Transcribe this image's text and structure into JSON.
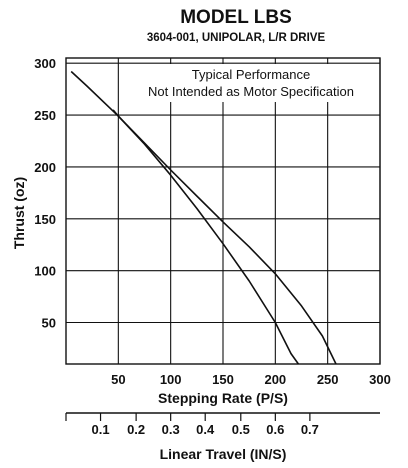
{
  "chart_data": {
    "type": "line",
    "title": "MODEL LBS",
    "subtitle": "3604-001, UNIPOLAR, L/R DRIVE",
    "annotation": [
      "Typical Performance",
      "Not Intended as Motor Specification"
    ],
    "xlabel": "Stepping Rate (P/S)",
    "ylabel": "Thrust (oz)",
    "x2label": "Linear Travel (IN/S)",
    "xlim": [
      0,
      300
    ],
    "ylim": [
      10,
      305
    ],
    "x_ticks": [
      50,
      100,
      150,
      200,
      250,
      300
    ],
    "y_ticks": [
      50,
      100,
      150,
      200,
      250,
      300
    ],
    "x2_ticks": [
      {
        "label": "0.1",
        "x": 33
      },
      {
        "label": "0.2",
        "x": 67
      },
      {
        "label": "0.3",
        "x": 100
      },
      {
        "label": "0.4",
        "x": 133
      },
      {
        "label": "0.5",
        "x": 167
      },
      {
        "label": "0.6",
        "x": 200
      },
      {
        "label": "0.7",
        "x": 233
      }
    ],
    "grid": true,
    "series": [
      {
        "x": [
          5,
          20,
          50,
          75,
          100,
          125,
          150,
          175,
          200,
          215,
          222
        ],
        "y": [
          292,
          278,
          249,
          222,
          192,
          160,
          126,
          90,
          50,
          20,
          10
        ]
      },
      {
        "x": [
          45,
          50,
          75,
          100,
          125,
          150,
          175,
          200,
          225,
          245,
          258
        ],
        "y": [
          255,
          249,
          223,
          197,
          172,
          147,
          123,
          97,
          66,
          37,
          10
        ]
      }
    ]
  }
}
